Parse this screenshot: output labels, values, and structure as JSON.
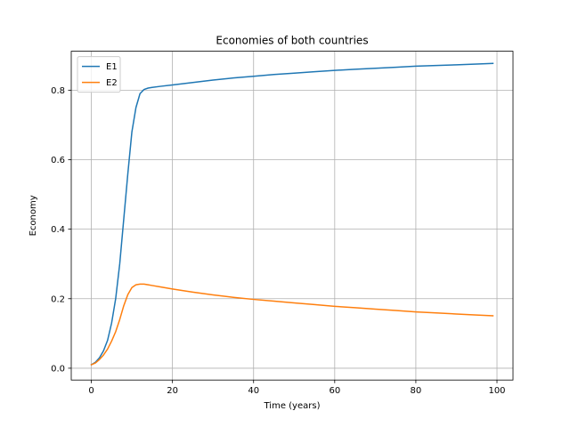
{
  "chart_data": {
    "type": "line",
    "title": "Economies of both countries",
    "xlabel": "Time (years)",
    "ylabel": "Economy",
    "xlim": [
      -4.95,
      103.95
    ],
    "ylim": [
      -0.034,
      0.912
    ],
    "xticks": [
      0,
      20,
      40,
      60,
      80,
      100
    ],
    "xtick_labels": [
      "0",
      "20",
      "40",
      "60",
      "80",
      "100"
    ],
    "yticks": [
      0.0,
      0.2,
      0.4,
      0.6,
      0.8
    ],
    "ytick_labels": [
      "0.0",
      "0.2",
      "0.4",
      "0.6",
      "0.8"
    ],
    "grid": true,
    "legend_position": "upper-left",
    "series": [
      {
        "name": "E1",
        "color": "#1f77b4",
        "x": [
          0,
          1,
          2,
          3,
          4,
          5,
          6,
          7,
          8,
          9,
          10,
          11,
          12,
          13,
          14,
          15,
          17,
          20,
          25,
          30,
          35,
          40,
          45,
          50,
          55,
          60,
          65,
          70,
          75,
          80,
          85,
          90,
          95,
          99
        ],
        "y": [
          0.01,
          0.017,
          0.03,
          0.05,
          0.08,
          0.13,
          0.2,
          0.3,
          0.43,
          0.56,
          0.68,
          0.75,
          0.79,
          0.802,
          0.806,
          0.808,
          0.811,
          0.815,
          0.822,
          0.829,
          0.835,
          0.84,
          0.845,
          0.849,
          0.853,
          0.857,
          0.86,
          0.863,
          0.866,
          0.869,
          0.871,
          0.873,
          0.875,
          0.877
        ]
      },
      {
        "name": "E2",
        "color": "#ff7f0e",
        "x": [
          0,
          1,
          2,
          3,
          4,
          5,
          6,
          7,
          8,
          9,
          10,
          11,
          12,
          13,
          14,
          15,
          17,
          20,
          25,
          30,
          35,
          40,
          45,
          50,
          55,
          60,
          65,
          70,
          75,
          80,
          85,
          90,
          95,
          99
        ],
        "y": [
          0.01,
          0.015,
          0.025,
          0.038,
          0.055,
          0.078,
          0.105,
          0.14,
          0.18,
          0.212,
          0.232,
          0.24,
          0.242,
          0.242,
          0.24,
          0.238,
          0.234,
          0.228,
          0.219,
          0.211,
          0.204,
          0.198,
          0.193,
          0.188,
          0.183,
          0.178,
          0.174,
          0.17,
          0.166,
          0.162,
          0.159,
          0.156,
          0.153,
          0.151
        ]
      }
    ]
  }
}
